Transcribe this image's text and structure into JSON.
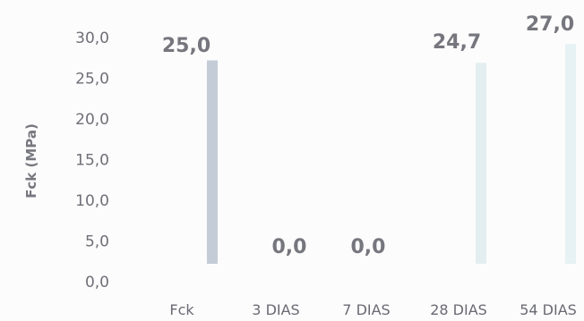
{
  "chart_data": {
    "type": "bar",
    "title": "",
    "xlabel": "",
    "ylabel": "Fck (MPa)",
    "categories": [
      "Fck",
      "3 DIAS",
      "7 DIAS",
      "28 DIAS",
      "54 DIAS"
    ],
    "values": [
      25.0,
      0.0,
      0.0,
      24.7,
      27.0
    ],
    "value_labels": [
      "25,0",
      "0,0",
      "0,0",
      "24,7",
      "27,0"
    ],
    "ylim": [
      0,
      30
    ],
    "yticks": [
      0,
      5,
      10,
      15,
      20,
      25,
      30
    ],
    "ytick_labels": [
      "0,0",
      "5,0",
      "10,0",
      "15,0",
      "20,0",
      "25,0",
      "30,0"
    ],
    "grid": false,
    "legend": "none",
    "bar_colors": [
      "#c4ccd8",
      "#e6eef2",
      "#e6eef2",
      "#e3eef1",
      "#e6f2f3"
    ]
  }
}
